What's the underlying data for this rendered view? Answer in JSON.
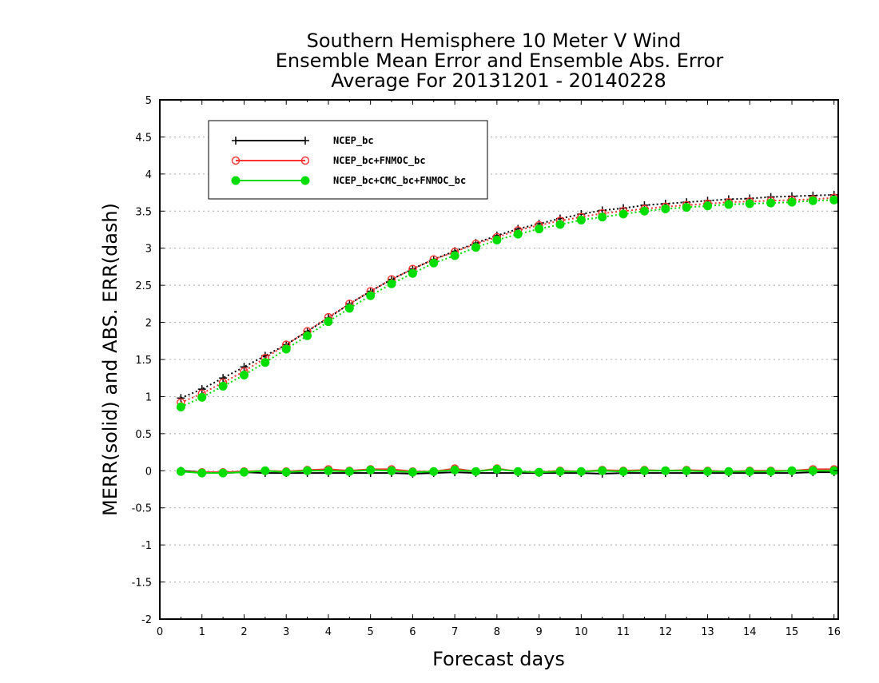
{
  "chart_data": {
    "type": "line",
    "title": [
      "Southern Hemisphere 10 Meter V Wind",
      "Ensemble Mean Error and Ensemble Abs. Error",
      "Average For 20131201 - 20140228"
    ],
    "xlabel": "Forecast days",
    "ylabel": "MERR(solid) and ABS. ERR(dash)",
    "xlim": [
      0,
      16.1
    ],
    "ylim": [
      -2,
      5
    ],
    "xticks": [
      0,
      1,
      2,
      3,
      4,
      5,
      6,
      7,
      8,
      9,
      10,
      11,
      12,
      13,
      14,
      15,
      16
    ],
    "yticks": [
      -2,
      -1.5,
      -1,
      -0.5,
      0,
      0.5,
      1,
      1.5,
      2,
      2.5,
      3,
      3.5,
      4,
      4.5,
      5
    ],
    "ytick_labels": [
      "-2",
      "-1.5",
      "-1",
      "-0.5",
      "0",
      "0.5",
      "1",
      "1.5",
      "2",
      "2.5",
      "3",
      "3.5",
      "4",
      "4.5",
      "5"
    ],
    "grid": "horizontal dotted",
    "legend_position": "top-left",
    "x": [
      0.5,
      1,
      1.5,
      2,
      2.5,
      3,
      3.5,
      4,
      4.5,
      5,
      5.5,
      6,
      6.5,
      7,
      7.5,
      8,
      8.5,
      9,
      9.5,
      10,
      10.5,
      11,
      11.5,
      12,
      12.5,
      13,
      13.5,
      14,
      14.5,
      15,
      15.5,
      16
    ],
    "series": [
      {
        "name": "NCEP_bc",
        "color": "#000000",
        "marker": "plus",
        "abs_err": [
          0.98,
          1.1,
          1.25,
          1.4,
          1.55,
          1.7,
          1.88,
          2.06,
          2.25,
          2.42,
          2.58,
          2.72,
          2.85,
          2.96,
          3.07,
          3.17,
          3.26,
          3.33,
          3.4,
          3.46,
          3.51,
          3.54,
          3.58,
          3.6,
          3.62,
          3.64,
          3.66,
          3.67,
          3.69,
          3.7,
          3.71,
          3.72
        ],
        "mean_err": [
          0.0,
          -0.02,
          -0.03,
          -0.02,
          -0.03,
          -0.03,
          -0.03,
          -0.03,
          -0.03,
          -0.03,
          -0.03,
          -0.04,
          -0.03,
          -0.02,
          -0.03,
          -0.03,
          -0.03,
          -0.03,
          -0.03,
          -0.03,
          -0.04,
          -0.03,
          -0.03,
          -0.03,
          -0.03,
          -0.03,
          -0.03,
          -0.03,
          -0.03,
          -0.03,
          -0.02,
          -0.02
        ]
      },
      {
        "name": "NCEP_bc+FNMOC_bc",
        "color": "#ff3333",
        "marker": "open-circle",
        "abs_err": [
          0.92,
          1.04,
          1.19,
          1.34,
          1.52,
          1.7,
          1.88,
          2.07,
          2.25,
          2.42,
          2.58,
          2.72,
          2.85,
          2.95,
          3.06,
          3.15,
          3.24,
          3.31,
          3.37,
          3.42,
          3.47,
          3.5,
          3.53,
          3.56,
          3.58,
          3.6,
          3.62,
          3.63,
          3.64,
          3.65,
          3.66,
          3.68
        ],
        "mean_err": [
          -0.01,
          -0.02,
          -0.02,
          -0.01,
          0.0,
          -0.01,
          0.01,
          0.02,
          0.0,
          0.02,
          0.02,
          -0.01,
          -0.01,
          0.03,
          -0.01,
          0.03,
          -0.01,
          -0.02,
          0.0,
          -0.01,
          0.01,
          0.0,
          0.01,
          0.0,
          0.01,
          0.0,
          -0.01,
          0.0,
          0.0,
          0.0,
          0.02,
          0.02
        ]
      },
      {
        "name": "NCEP_bc+CMC_bc+FNMOC_bc",
        "color": "#00dd00",
        "marker": "filled-circle",
        "abs_err": [
          0.86,
          0.99,
          1.14,
          1.29,
          1.46,
          1.64,
          1.82,
          2.01,
          2.19,
          2.36,
          2.52,
          2.66,
          2.8,
          2.9,
          3.01,
          3.11,
          3.19,
          3.26,
          3.32,
          3.38,
          3.42,
          3.46,
          3.5,
          3.53,
          3.55,
          3.57,
          3.59,
          3.6,
          3.61,
          3.62,
          3.64,
          3.65
        ],
        "mean_err": [
          -0.01,
          -0.03,
          -0.03,
          -0.02,
          0.0,
          -0.02,
          0.0,
          0.0,
          -0.01,
          0.01,
          0.0,
          -0.02,
          -0.01,
          0.01,
          -0.01,
          0.02,
          -0.01,
          -0.02,
          -0.01,
          -0.01,
          0.0,
          -0.01,
          0.0,
          0.0,
          0.0,
          -0.01,
          -0.01,
          -0.01,
          -0.01,
          0.0,
          0.0,
          0.0
        ]
      }
    ]
  }
}
